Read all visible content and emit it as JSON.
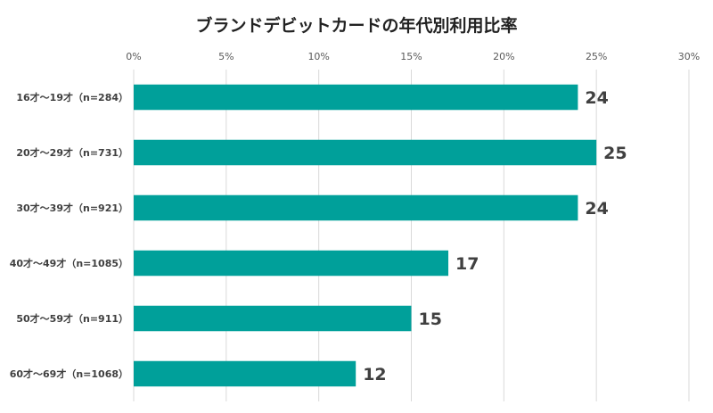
{
  "chart_data": {
    "type": "bar",
    "orientation": "horizontal",
    "title": "ブランドデビットカードの年代別利用比率",
    "categories": [
      "16才～19才（n=284）",
      "20才～29才（n=731）",
      "30才～39才（n=921）",
      "40才～49才（n=1085）",
      "50才～59才（n=911）",
      "60才～69才（n=1068）"
    ],
    "series": [
      {
        "values": [
          24,
          25,
          24,
          17,
          15,
          12
        ]
      }
    ],
    "x_ticks": [
      "0%",
      "5%",
      "10%",
      "15%",
      "20%",
      "25%",
      "30%"
    ],
    "xlim": [
      0,
      30
    ],
    "x_axis_position": "top",
    "grid": "vertical",
    "legend": "none",
    "bar_color": "#00A09A"
  }
}
